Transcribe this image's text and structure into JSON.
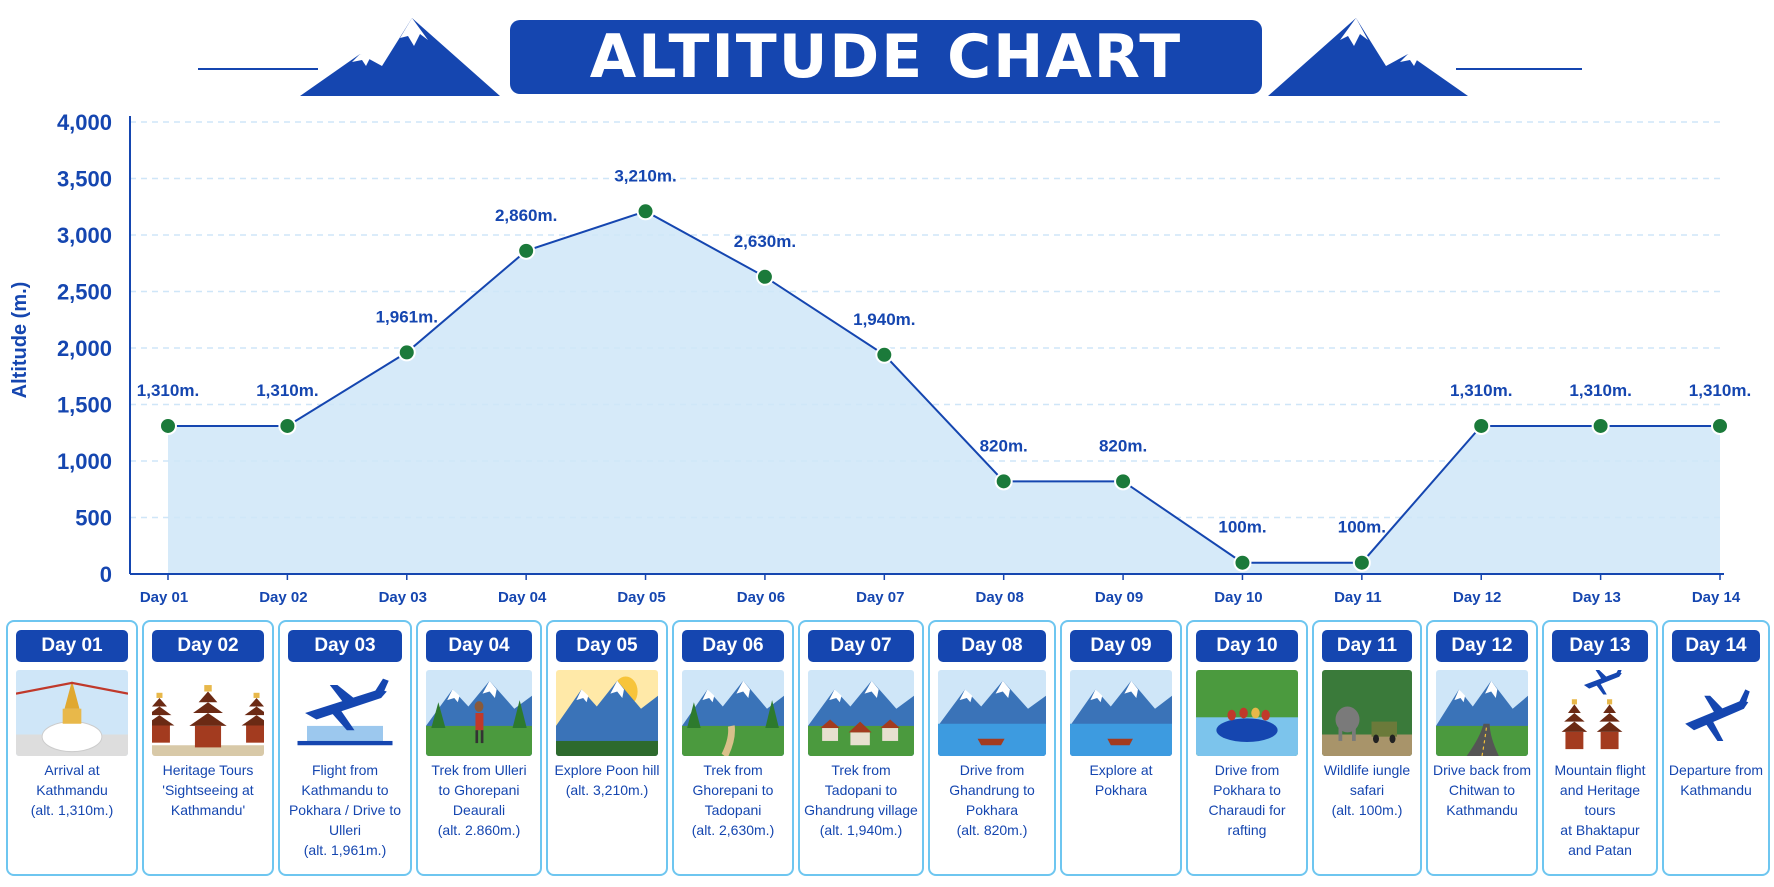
{
  "title": "ALTITUDE CHART",
  "chart_data": {
    "type": "line",
    "ylabel": "Altitude (m.)",
    "ylim": [
      0,
      4000
    ],
    "yticks": [
      "0",
      "500",
      "1,000",
      "1,500",
      "2,000",
      "2,500",
      "3,000",
      "3,500",
      "4,000"
    ],
    "ytick_values": [
      0,
      500,
      1000,
      1500,
      2000,
      2500,
      3000,
      3500,
      4000
    ],
    "grid": true,
    "categories": [
      "Day 01",
      "Day 02",
      "Day 03",
      "Day 04",
      "Day 05",
      "Day 06",
      "Day 07",
      "Day 08",
      "Day 09",
      "Day 10",
      "Day 11",
      "Day 12",
      "Day 13",
      "Day 14"
    ],
    "values": [
      1310,
      1310,
      1961,
      2860,
      3210,
      2630,
      1940,
      820,
      820,
      100,
      100,
      1310,
      1310,
      1310
    ],
    "data_labels": [
      "1,310m.",
      "1,310m.",
      "1,961m.",
      "2,860m.",
      "3,210m.",
      "2,630m.",
      "1,940m.",
      "820m.",
      "820m.",
      "100m.",
      "100m.",
      "1,310m.",
      "1,310m.",
      "1,310m."
    ],
    "colors": {
      "line": "#1546b0",
      "marker": "#1b7a3a",
      "fill": "#cfe6f8",
      "grid": "#cfe6f8"
    }
  },
  "itinerary": [
    {
      "day": "Day 01",
      "desc": "Arrival at\nKathmandu\n(alt. 1,310m.)",
      "icon": "stupa-icon"
    },
    {
      "day": "Day 02",
      "desc": "Heritage Tours\n'Sightseeing at\nKathmandu'",
      "icon": "temple-icon"
    },
    {
      "day": "Day 03",
      "desc": "Flight from\nKathmandu to\nPokhara / Drive to\nUlleri\n(alt. 1,961m.)",
      "icon": "airplane-airport-icon"
    },
    {
      "day": "Day 04",
      "desc": "Trek from Ulleri\nto Ghorepani\nDeaurali\n(alt. 2.860m.)",
      "icon": "hiker-icon"
    },
    {
      "day": "Day 05",
      "desc": "Explore Poon hill\n(alt. 3,210m.)",
      "icon": "sunrise-mountain-icon"
    },
    {
      "day": "Day 06",
      "desc": "Trek from\nGhorepani to\nTadopani\n(alt. 2,630m.)",
      "icon": "trail-icon"
    },
    {
      "day": "Day 07",
      "desc": "Trek from\nTadopani to\nGhandrung village\n(alt. 1,940m.)",
      "icon": "village-icon"
    },
    {
      "day": "Day 08",
      "desc": "Drive from\nGhandrung to\nPokhara\n(alt. 820m.)",
      "icon": "lake-boat-icon"
    },
    {
      "day": "Day 09",
      "desc": "Explore at\nPokhara",
      "icon": "lake-boat-icon"
    },
    {
      "day": "Day 10",
      "desc": "Drive from\nPokhara to\nCharaudi for\nrafting",
      "icon": "rafting-icon"
    },
    {
      "day": "Day 11",
      "desc": "Wildlife iungle\nsafari\n(alt. 100m.)",
      "icon": "elephant-jeep-icon"
    },
    {
      "day": "Day 12",
      "desc": "Drive back from\nChitwan to\nKathmandu",
      "icon": "road-icon"
    },
    {
      "day": "Day 13",
      "desc": "Mountain flight\nand Heritage tours\nat Bhaktapur\nand Patan",
      "icon": "airplane-temple-icon"
    },
    {
      "day": "Day 14",
      "desc": "Departure from\nKathmandu",
      "icon": "airplane-icon"
    }
  ]
}
